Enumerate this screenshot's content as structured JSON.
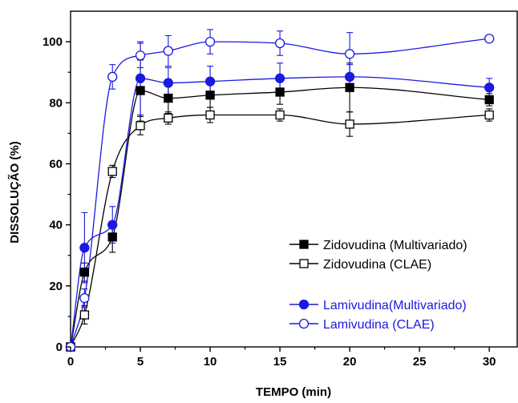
{
  "chart_data": {
    "type": "line",
    "xlabel": "TEMPO (min)",
    "ylabel": "DISSOLUÇÃO (%)",
    "xlim": [
      0,
      32
    ],
    "ylim": [
      0,
      110
    ],
    "xticks": [
      0,
      5,
      10,
      15,
      20,
      25,
      30
    ],
    "yticks": [
      0,
      20,
      40,
      60,
      80,
      100
    ],
    "grid": false,
    "legend_position": "bottom-right",
    "series": [
      {
        "name": "Zidovudina (Multivariado)",
        "color": "#000000",
        "marker": "filled-square",
        "x": [
          0,
          1,
          3,
          5,
          7,
          10,
          15,
          20,
          30
        ],
        "y": [
          0,
          24.5,
          36,
          84,
          81.5,
          82.5,
          83.5,
          85,
          81
        ],
        "err": [
          0,
          3,
          5,
          10,
          5,
          4,
          4,
          8,
          2
        ]
      },
      {
        "name": "Zidovudina (CLAE)",
        "color": "#000000",
        "marker": "open-square",
        "x": [
          0,
          1,
          3,
          5,
          7,
          10,
          15,
          20,
          30
        ],
        "y": [
          0,
          10.5,
          57.5,
          72.5,
          75,
          76,
          76,
          73,
          76
        ],
        "err": [
          0,
          3,
          2,
          3,
          2,
          2.5,
          2,
          4,
          2
        ]
      },
      {
        "name": "Lamivudina(Multivariado)",
        "color": "#1a1ae0",
        "marker": "filled-circle",
        "x": [
          0,
          1,
          3,
          5,
          7,
          10,
          15,
          20,
          30
        ],
        "y": [
          0,
          32.5,
          40,
          88,
          86.5,
          87,
          88,
          88.5,
          85
        ],
        "err": [
          0,
          11.5,
          6,
          12,
          5,
          5,
          5,
          4,
          3
        ]
      },
      {
        "name": "Lamivudina (CLAE)",
        "color": "#1a1ae0",
        "marker": "open-circle",
        "x": [
          0,
          1,
          3,
          5,
          7,
          10,
          15,
          20,
          30
        ],
        "y": [
          0,
          16,
          88.5,
          95.5,
          97,
          100,
          99.5,
          96,
          101
        ],
        "err": [
          0,
          3,
          4,
          4,
          5,
          4,
          4,
          7,
          1
        ]
      }
    ]
  }
}
